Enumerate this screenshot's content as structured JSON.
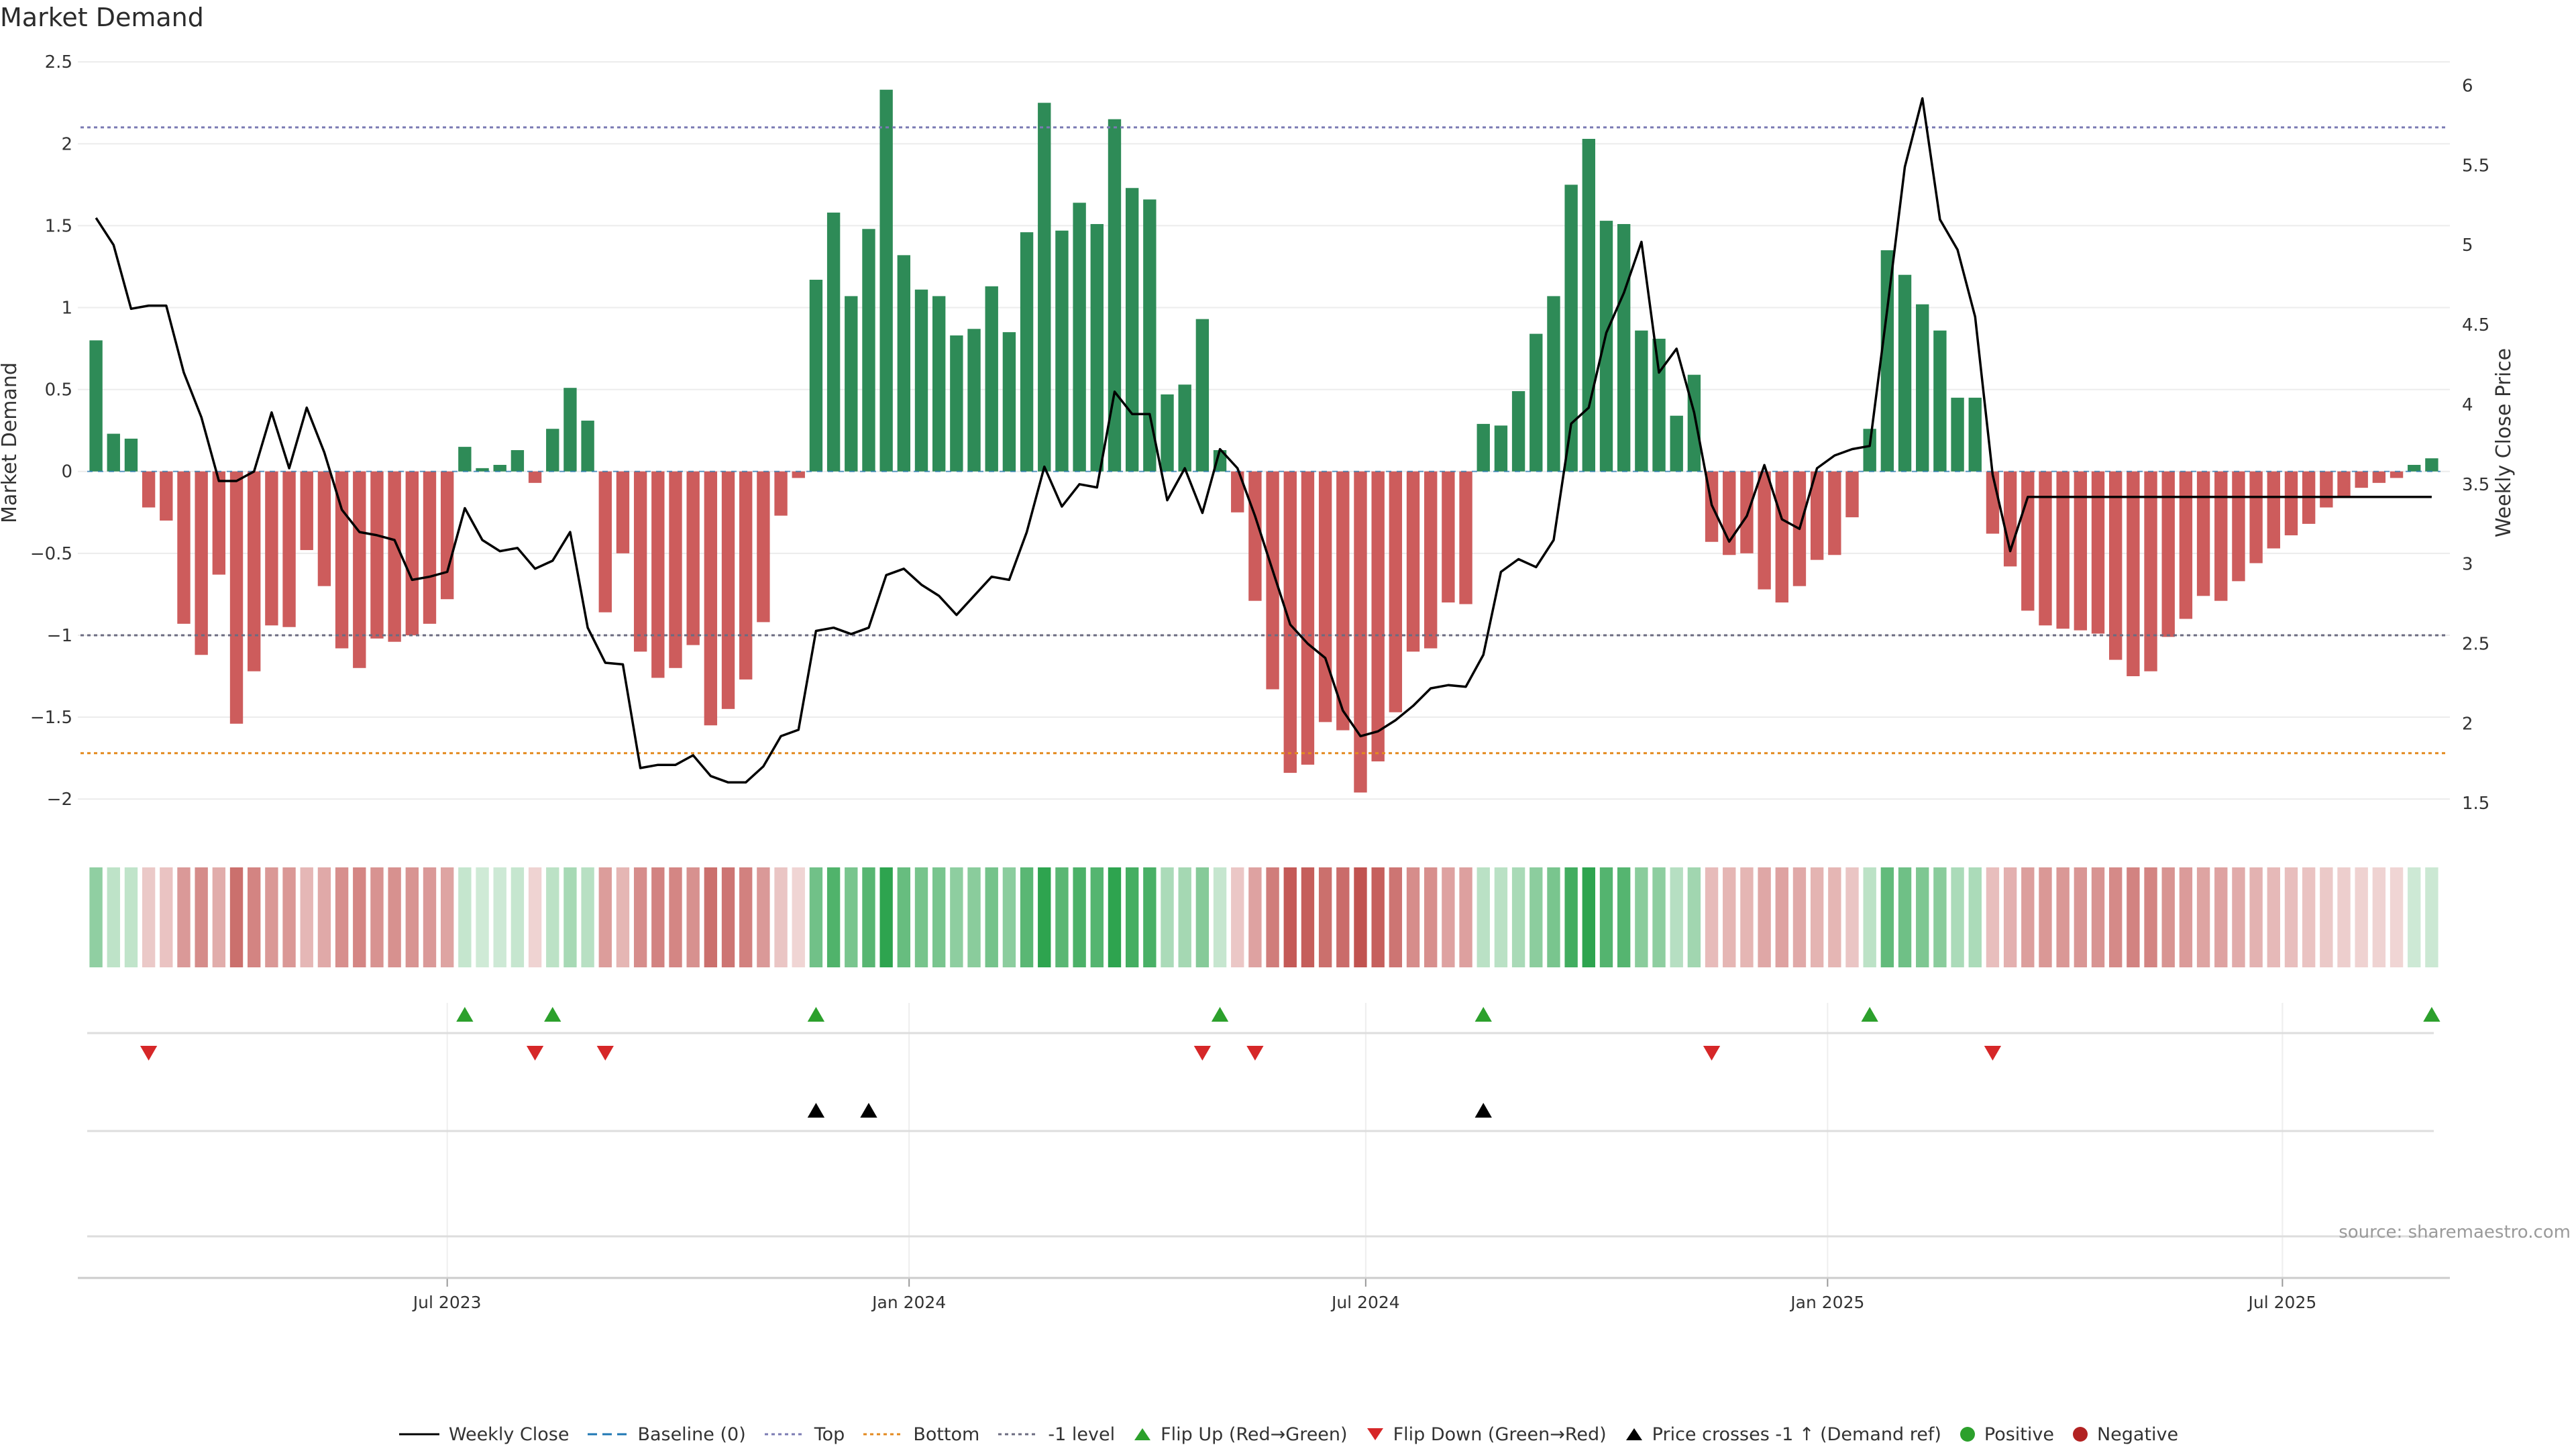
{
  "title": "Market Demand",
  "source": "source: sharemaestro.com",
  "colors": {
    "positive": "#2e8b57",
    "negative": "#cd5c5c",
    "price": "#000000",
    "top": "#7b7bb3",
    "bottom": "#e38a1f",
    "minus1": "#6b6b80",
    "flip_up": "#2ca02c",
    "flip_down": "#d62728",
    "cross": "#000000",
    "pos_dot": "#2ca02c",
    "neg_dot": "#b22222"
  },
  "chart_data": {
    "type": "bar+line",
    "title": "Market Demand",
    "ylabel": "Market Demand",
    "y2label": "Weekly Close Price",
    "ylim": [
      -2.2,
      2.55
    ],
    "y2lim": [
      1.32,
      6.2
    ],
    "yticks": [
      -2,
      -1.5,
      -1,
      -0.5,
      0,
      0.5,
      1,
      1.5,
      2,
      2.5
    ],
    "ytick_labels": [
      "−2",
      "−1.5",
      "−1",
      "−0.5",
      "0",
      "0.5",
      "1",
      "1.5",
      "2",
      "2.5"
    ],
    "y2ticks": [
      1.5,
      2,
      2.5,
      3,
      3.5,
      4,
      4.5,
      5,
      5.5,
      6
    ],
    "y2tick_labels": [
      "1.5",
      "2",
      "2.5",
      "3",
      "3.5",
      "4",
      "4.5",
      "5",
      "5.5",
      "6"
    ],
    "xticks": [
      {
        "week": 20.5,
        "label": "Jul 2023"
      },
      {
        "week": 46.8,
        "label": "Jan 2024"
      },
      {
        "week": 72.8,
        "label": "Jul 2024"
      },
      {
        "week": 99.1,
        "label": "Jan 2025"
      },
      {
        "week": 125.0,
        "label": "Jul 2025"
      }
    ],
    "levels": {
      "top": 2.1,
      "bottom": -1.72,
      "minus1": -1.0,
      "baseline": 0
    },
    "demand": [
      0.8,
      0.23,
      0.2,
      -0.22,
      -0.3,
      -0.93,
      -1.12,
      -0.63,
      -1.54,
      -1.22,
      -0.94,
      -0.95,
      -0.48,
      -0.7,
      -1.08,
      -1.2,
      -1.02,
      -1.04,
      -1.0,
      -0.93,
      -0.78,
      0.15,
      0.02,
      0.04,
      0.13,
      -0.07,
      0.26,
      0.51,
      0.31,
      -0.86,
      -0.5,
      -1.1,
      -1.26,
      -1.2,
      -1.06,
      -1.55,
      -1.45,
      -1.27,
      -0.92,
      -0.27,
      -0.04,
      1.17,
      1.58,
      1.07,
      1.48,
      2.33,
      1.32,
      1.11,
      1.07,
      0.83,
      0.87,
      1.13,
      0.85,
      1.46,
      2.25,
      1.47,
      1.64,
      1.51,
      2.15,
      1.73,
      1.66,
      0.47,
      0.53,
      0.93,
      0.13,
      -0.25,
      -0.79,
      -1.33,
      -1.84,
      -1.79,
      -1.53,
      -1.58,
      -1.96,
      -1.77,
      -1.47,
      -1.1,
      -1.08,
      -0.8,
      -0.81,
      0.29,
      0.28,
      0.49,
      0.84,
      1.07,
      1.75,
      2.03,
      1.53,
      1.51,
      0.86,
      0.81,
      0.34,
      0.59,
      -0.43,
      -0.51,
      -0.5,
      -0.72,
      -0.8,
      -0.7,
      -0.54,
      -0.51,
      -0.28,
      0.26,
      1.35,
      1.2,
      1.02,
      0.86,
      0.45,
      0.45,
      -0.38,
      -0.58,
      -0.85,
      -0.94,
      -0.96,
      -0.97,
      -0.99,
      -1.15,
      -1.25,
      -1.22,
      -1.01,
      -0.9,
      -0.76,
      -0.79,
      -0.67,
      -0.56,
      -0.47,
      -0.39,
      -0.32,
      -0.22,
      -0.15,
      -0.1,
      -0.07,
      -0.04,
      0.04,
      0.08
    ],
    "price": [
      5.17,
      5.0,
      4.6,
      4.62,
      4.62,
      4.2,
      3.92,
      3.52,
      3.52,
      3.58,
      3.95,
      3.6,
      3.98,
      3.7,
      3.34,
      3.2,
      3.18,
      3.15,
      2.9,
      2.92,
      2.95,
      3.35,
      3.15,
      3.08,
      3.1,
      2.97,
      3.02,
      3.2,
      2.6,
      2.38,
      2.37,
      1.72,
      1.74,
      1.74,
      1.8,
      1.67,
      1.63,
      1.63,
      1.73,
      1.92,
      1.96,
      2.58,
      2.6,
      2.56,
      2.6,
      2.93,
      2.97,
      2.87,
      2.8,
      2.68,
      2.8,
      2.92,
      2.9,
      3.2,
      3.61,
      3.36,
      3.5,
      3.48,
      4.08,
      3.94,
      3.94,
      3.4,
      3.6,
      3.32,
      3.72,
      3.6,
      3.3,
      2.96,
      2.62,
      2.5,
      2.41,
      2.08,
      1.92,
      1.95,
      2.02,
      2.11,
      2.22,
      2.24,
      2.23,
      2.43,
      2.95,
      3.03,
      2.98,
      3.15,
      3.88,
      3.98,
      4.45,
      4.7,
      5.02,
      4.2,
      4.35,
      3.95,
      3.37,
      3.14,
      3.3,
      3.62,
      3.28,
      3.22,
      3.6,
      3.68,
      3.72,
      3.74,
      4.6,
      5.49,
      5.92,
      5.16,
      4.97,
      4.55,
      3.56,
      3.08,
      3.42,
      3.42,
      3.42,
      3.42,
      3.42,
      3.42,
      3.42,
      3.42,
      3.42,
      3.42,
      3.42,
      3.42,
      3.42,
      3.42,
      3.42,
      3.42,
      3.42,
      3.42,
      3.42,
      3.42,
      3.42,
      3.42,
      3.42,
      3.42
    ],
    "flip_up_weeks": [
      21,
      26,
      41,
      64,
      79,
      101,
      133
    ],
    "flip_down_weeks": [
      3,
      25,
      29,
      63,
      66,
      92,
      108
    ],
    "cross_up_weeks": [
      41,
      44,
      79
    ]
  },
  "legend": {
    "items": [
      {
        "key": "weekly-close",
        "label": "Weekly Close"
      },
      {
        "key": "baseline",
        "label": "Baseline (0)"
      },
      {
        "key": "top",
        "label": "Top"
      },
      {
        "key": "bottom",
        "label": "Bottom"
      },
      {
        "key": "minus1",
        "label": "-1 level"
      },
      {
        "key": "flip-up",
        "label": "Flip Up (Red→Green)"
      },
      {
        "key": "flip-down",
        "label": "Flip Down (Green→Red)"
      },
      {
        "key": "cross-up",
        "label": "Price crosses -1 ↑ (Demand ref)"
      },
      {
        "key": "positive",
        "label": "Positive"
      },
      {
        "key": "negative",
        "label": "Negative"
      }
    ]
  }
}
